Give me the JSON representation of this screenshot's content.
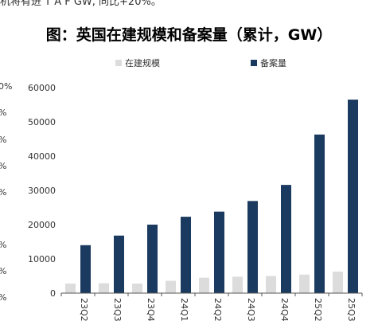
{
  "page": {
    "top_text": "机将有进 T A F GW, 同比+20%。",
    "left_fragments": [
      "0%",
      "%",
      "%",
      "%",
      "%",
      "%",
      "%",
      "%"
    ]
  },
  "chart_data": {
    "type": "bar",
    "title": "图：英国在建规模和备案量（累计，GW）",
    "categories": [
      "23Q2",
      "23Q3",
      "23Q4",
      "24Q1",
      "24Q2",
      "24Q3",
      "24Q4",
      "25Q2",
      "25Q3"
    ],
    "series": [
      {
        "name": "在建规模",
        "color": "#dcdcdc",
        "values": [
          2800,
          2900,
          2800,
          3600,
          4500,
          4800,
          5000,
          5400,
          6300
        ]
      },
      {
        "name": "备案量",
        "color": "#1b3a5f",
        "values": [
          14000,
          16800,
          20000,
          22300,
          23800,
          26900,
          31600,
          46300,
          56500
        ]
      }
    ],
    "yticks": [
      0,
      10000,
      20000,
      30000,
      40000,
      50000,
      60000
    ],
    "ylim": [
      0,
      60000
    ],
    "grid": false,
    "legend_position": "top"
  }
}
